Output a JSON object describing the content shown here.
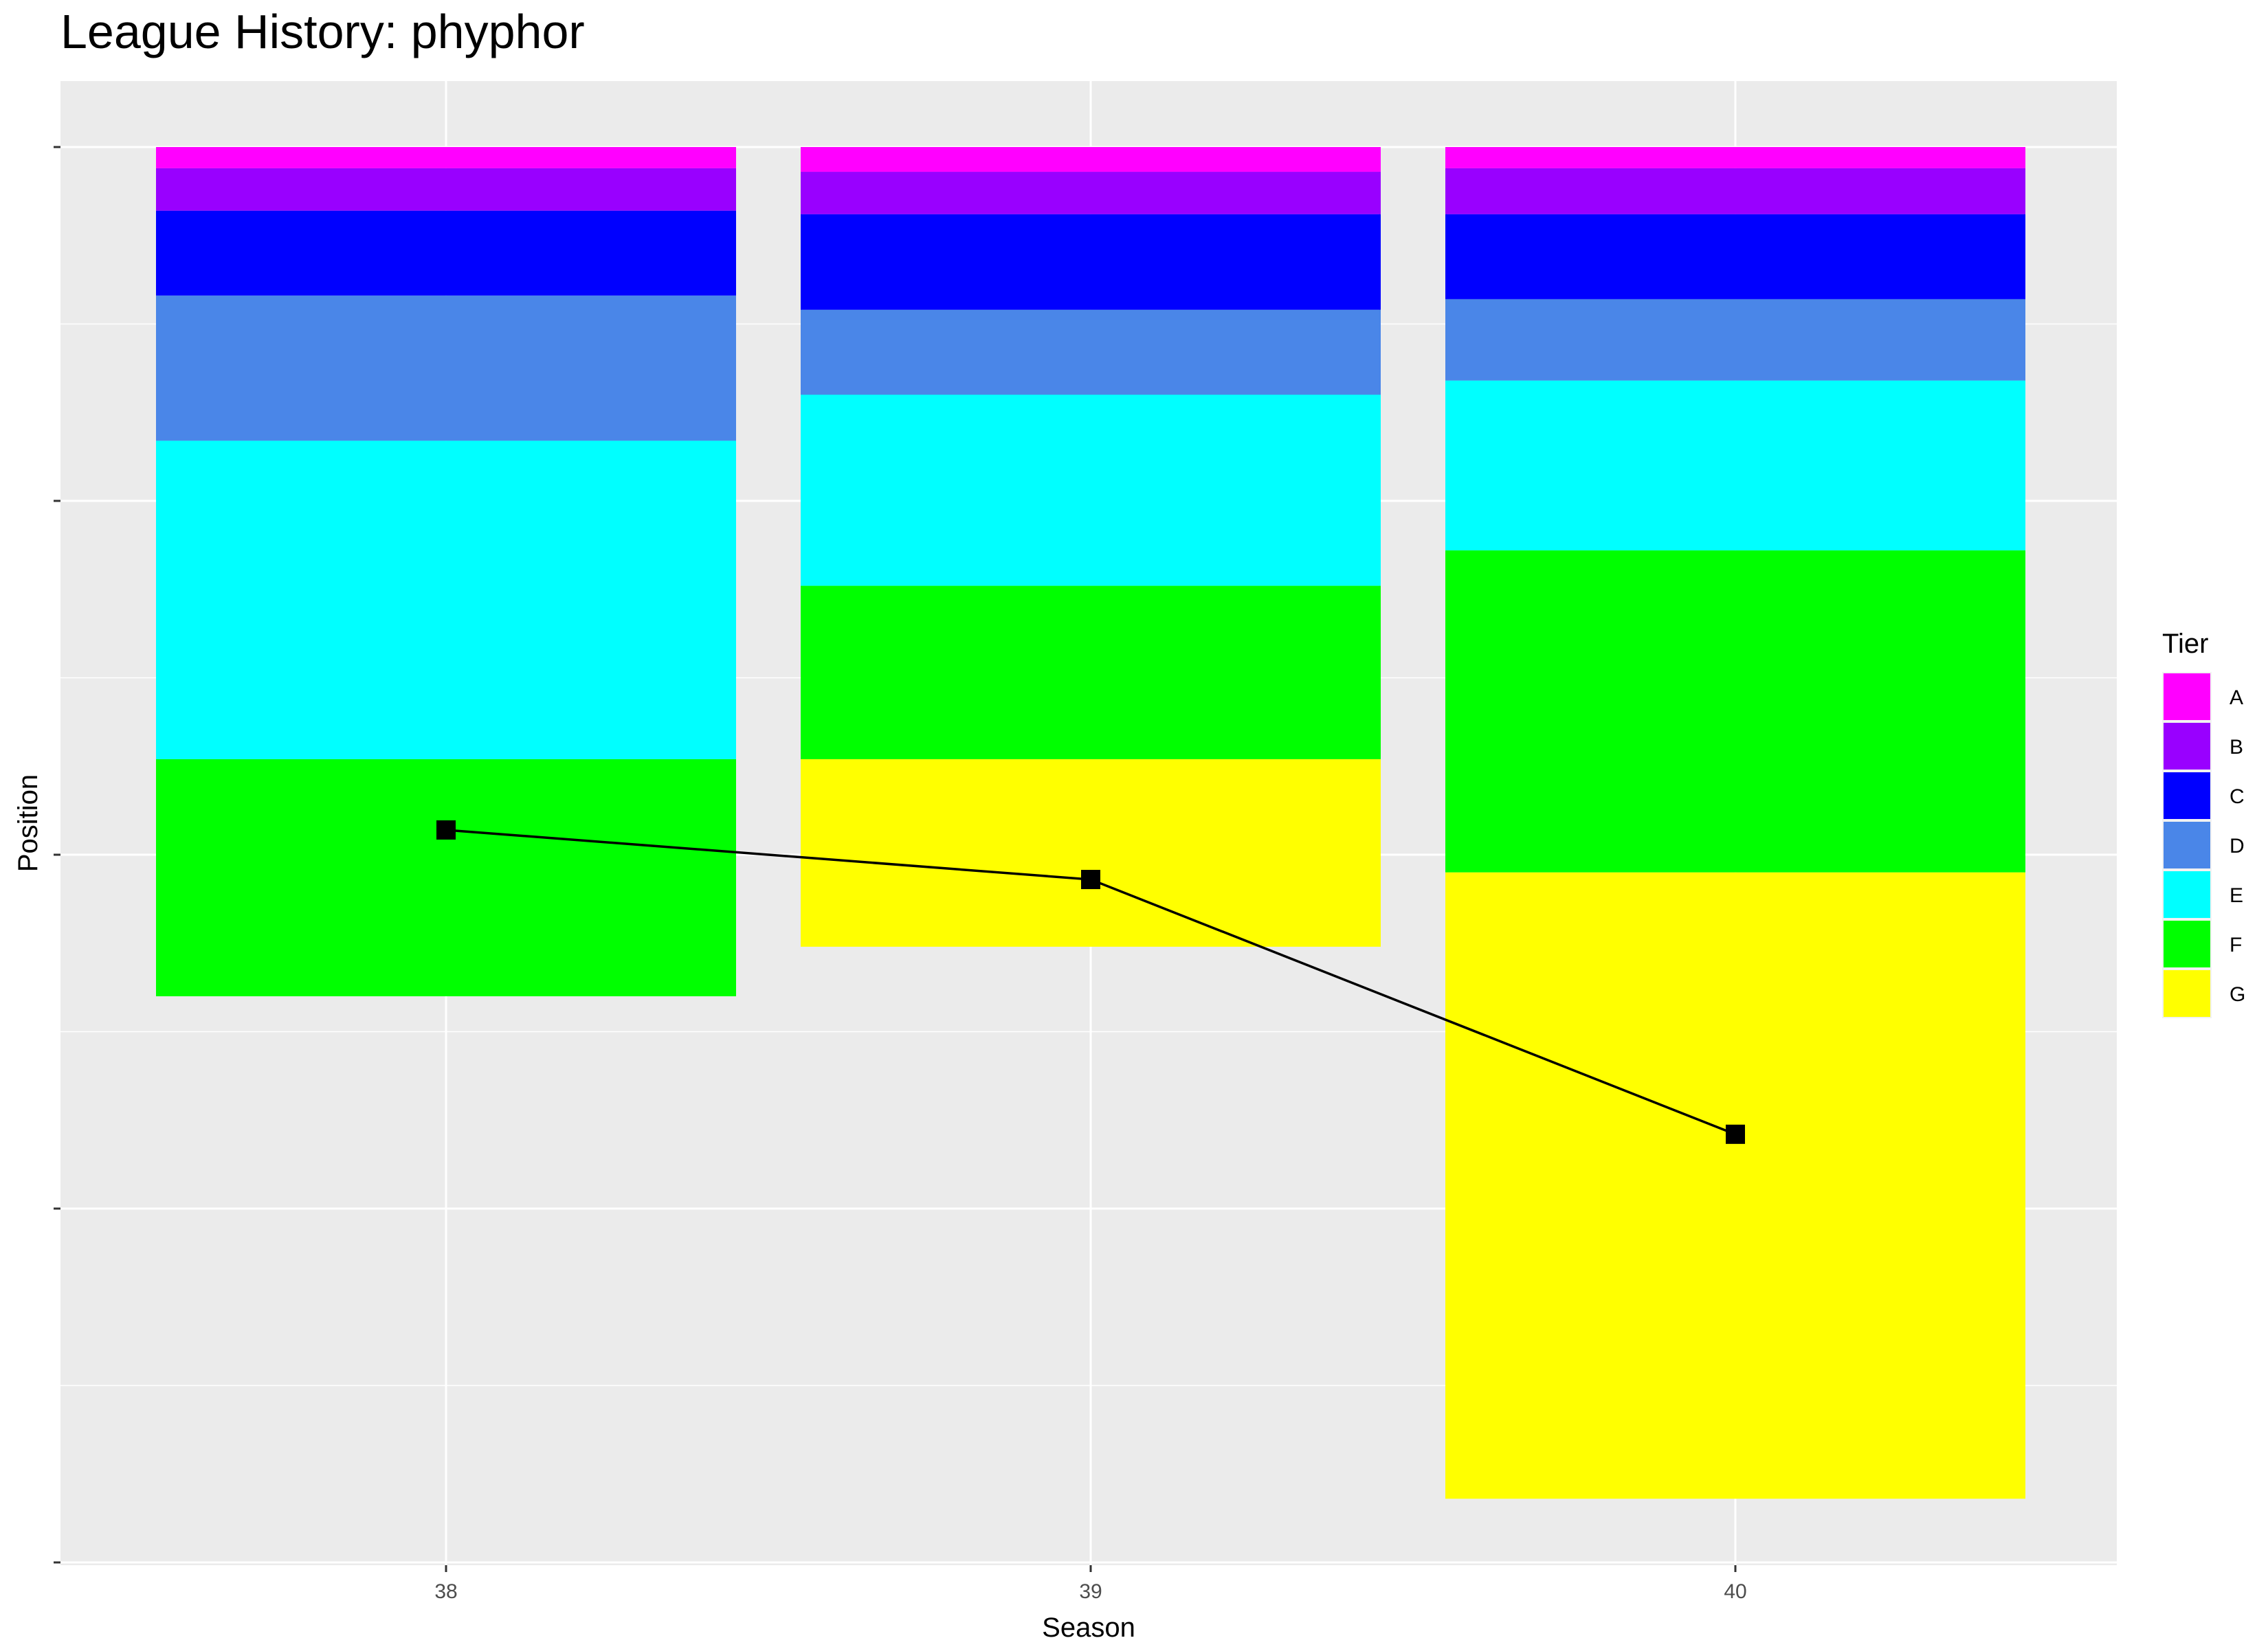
{
  "chart_data": {
    "type": "bar",
    "title": "League History: phyphor",
    "xlabel": "Season",
    "ylabel": "Position",
    "categories": [
      "38",
      "39",
      "40"
    ],
    "y_reversed": true,
    "ylim": [
      0,
      20
    ],
    "y_ticks_labeled": false,
    "grid": true,
    "series": [
      {
        "name": "A",
        "color": "#FF00FF",
        "values": [
          0.3,
          0.35,
          0.3
        ]
      },
      {
        "name": "B",
        "color": "#9900FF",
        "values": [
          0.6,
          0.6,
          0.65
        ]
      },
      {
        "name": "C",
        "color": "#0000FF",
        "values": [
          1.2,
          1.35,
          1.2
        ]
      },
      {
        "name": "D",
        "color": "#4A86E8",
        "values": [
          2.05,
          1.2,
          1.15
        ]
      },
      {
        "name": "E",
        "color": "#00FFFF",
        "values": [
          4.5,
          2.7,
          2.4
        ]
      },
      {
        "name": "F",
        "color": "#00FF00",
        "values": [
          3.35,
          2.45,
          4.55
        ]
      },
      {
        "name": "G",
        "color": "#FFFF00",
        "values": [
          0,
          2.65,
          8.85
        ]
      }
    ],
    "position_line": {
      "x": [
        "38",
        "39",
        "40"
      ],
      "y": [
        9.65,
        10.35,
        13.95
      ],
      "marker": "square",
      "color": "#000000"
    },
    "legend": {
      "title": "Tier",
      "placement": "right"
    }
  }
}
